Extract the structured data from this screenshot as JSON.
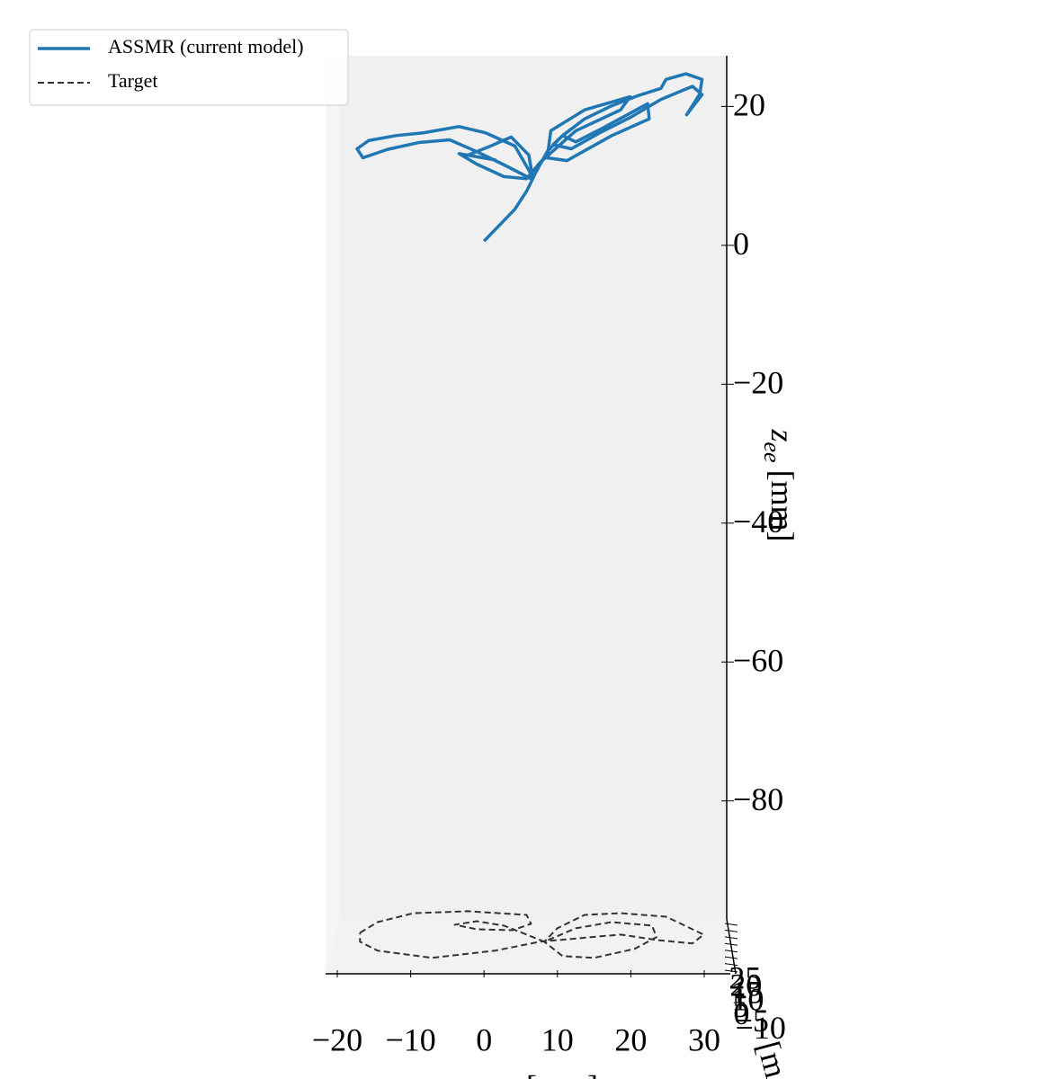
{
  "chart_data": {
    "type": "line3d",
    "legend": "upper left",
    "xlim": [
      -21.5,
      33
    ],
    "xticks": [
      {
        "value": -20,
        "label": "−20"
      },
      {
        "value": -10,
        "label": "−10"
      },
      0,
      10,
      20,
      30
    ],
    "ylim": [
      -12,
      27
    ],
    "yticks": [
      {
        "value": -10,
        "label": "−10"
      },
      {
        "value": -5,
        "label": "−5"
      },
      0,
      5,
      10,
      15,
      20,
      25
    ],
    "zlim": [
      -97,
      27.3
    ],
    "zticks": [
      20,
      0,
      {
        "value": -20,
        "label": "−20"
      },
      {
        "value": -40,
        "label": "−40"
      },
      {
        "value": -60,
        "label": "−60"
      },
      {
        "value": -80,
        "label": "−80"
      }
    ],
    "xlabel": "[mm]",
    "ylabel": "[m",
    "zlabel": {
      "symbol": "z",
      "subscript": "ee",
      "unit": "[mm]"
    },
    "series": [
      {
        "name": "ASSMR (current model)",
        "color": "#1f77b4",
        "style": "solid",
        "x": [
          0.0,
          2.1,
          4.2,
          5.8,
          7.1,
          8.6,
          10.7,
          13.7,
          17.4,
          21.1,
          24.1,
          24.8,
          27.5,
          29.7,
          29.4,
          27.6,
          29.7,
          28.4,
          24.1,
          19.9,
          15.6,
          11.9,
          9.4,
          10.7,
          12.5,
          16.2,
          22.3,
          22.5,
          17.4,
          11.3,
          8.6,
          9.1,
          13.7,
          19.9,
          18.6,
          12.5,
          7.6,
          5.8,
          2.7,
          -1.0,
          -3.4,
          1.5,
          -2.2,
          0.9,
          3.7,
          6.1,
          6.6,
          4.2,
          0.2,
          -3.4,
          -8.3,
          -12.0,
          -15.7,
          -17.3,
          -16.5,
          -13.2,
          -8.9,
          -4.7,
          -1.0,
          2.7,
          6.4
        ],
        "z": [
          0.6,
          2.9,
          5.2,
          7.8,
          10.6,
          13.5,
          15.8,
          18.2,
          20.1,
          21.6,
          22.6,
          23.9,
          24.7,
          23.9,
          21.8,
          18.8,
          21.7,
          22.9,
          21.0,
          18.4,
          16.1,
          13.9,
          14.5,
          15.8,
          14.9,
          16.9,
          20.4,
          18.2,
          15.8,
          12.2,
          12.6,
          16.5,
          19.5,
          21.4,
          19.5,
          16.5,
          11.9,
          9.6,
          9.9,
          11.7,
          13.2,
          12.3,
          13.0,
          14.3,
          15.6,
          13.0,
          9.9,
          14.3,
          16.2,
          17.1,
          16.2,
          15.8,
          15.1,
          13.9,
          12.6,
          13.8,
          14.8,
          15.2,
          13.5,
          11.6,
          9.6
        ]
      },
      {
        "name": "Target",
        "color": "#333333",
        "style": "dashed",
        "x": [
          -16.9,
          -14.5,
          -9.6,
          -2.2,
          5.8,
          6.4,
          3.9,
          -1.0,
          -4.0,
          -1.0,
          2.7,
          5.8,
          8.2,
          12.5,
          17.4,
          22.9,
          23.5,
          20.5,
          15.0,
          10.7,
          8.2,
          10.0,
          13.7,
          18.6,
          24.8,
          29.9,
          28.4,
          23.5,
          18.6,
          7.6,
          1.5,
          -7.1,
          -14.5,
          -16.9,
          -16.9
        ],
        "y": [
          7.3,
          13.4,
          18.5,
          19.6,
          17.5,
          12.4,
          8.8,
          9.3,
          11.9,
          13.9,
          11.4,
          6.3,
          2.2,
          9.9,
          13.4,
          11.4,
          4.8,
          -1.9,
          -7.0,
          -6.0,
          2.2,
          9.9,
          17.5,
          18.5,
          16.5,
          6.3,
          1.2,
          3.2,
          6.3,
          2.2,
          -2.9,
          -7.0,
          -2.9,
          2.2,
          7.3
        ]
      }
    ]
  }
}
